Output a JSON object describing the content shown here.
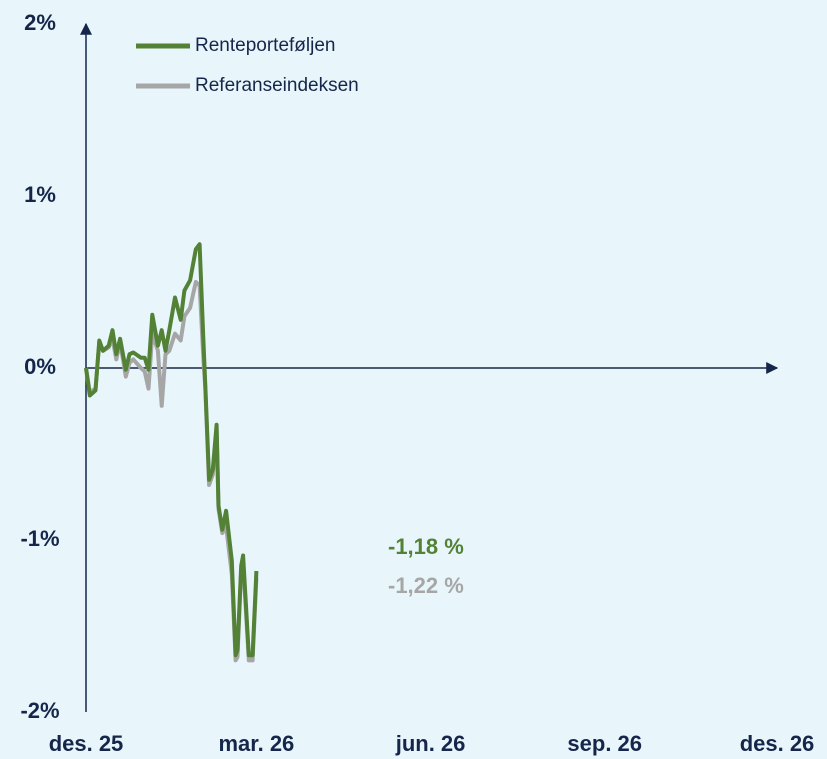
{
  "chart_data": {
    "type": "line",
    "x": [
      0,
      2,
      5,
      7,
      9,
      12,
      14,
      16,
      18,
      21,
      23,
      25,
      29,
      31,
      33,
      35,
      38,
      40,
      42,
      44,
      47,
      50,
      52,
      55,
      58,
      60,
      62,
      63,
      65,
      67,
      69,
      70,
      72,
      74,
      77,
      79,
      80,
      82,
      83,
      86,
      88,
      90
    ],
    "series": [
      {
        "name": "Renteporteføljen",
        "color": "#538135",
        "values": [
          0,
          -0.16,
          -0.13,
          0.16,
          0.1,
          0.13,
          0.22,
          0.08,
          0.17,
          -0.01,
          0.08,
          0.09,
          0.06,
          0.06,
          -0.01,
          0.31,
          0.13,
          0.22,
          0.1,
          0.22,
          0.41,
          0.28,
          0.45,
          0.51,
          0.69,
          0.72,
          0.16,
          -0.1,
          -0.65,
          -0.59,
          -0.33,
          -0.8,
          -0.94,
          -0.83,
          -1.12,
          -1.67,
          -1.64,
          -1.15,
          -1.09,
          -1.67,
          -1.67,
          -1.18
        ]
      },
      {
        "name": "Referanseindeksen",
        "color": "#a6a6a6",
        "values": [
          0,
          -0.14,
          -0.12,
          0.15,
          0.1,
          0.12,
          0.17,
          0.05,
          0.15,
          -0.05,
          0.03,
          0.05,
          0.0,
          -0.02,
          -0.12,
          0.2,
          0.1,
          -0.22,
          0.08,
          0.1,
          0.2,
          0.16,
          0.3,
          0.35,
          0.5,
          0.48,
          0.05,
          -0.12,
          -0.68,
          -0.62,
          -0.36,
          -0.82,
          -0.96,
          -0.92,
          -1.2,
          -1.7,
          -1.68,
          -1.17,
          -1.13,
          -1.7,
          -1.7,
          -1.22
        ]
      }
    ],
    "xlim": [
      0,
      365
    ],
    "xticks": [
      {
        "value": 0,
        "label": "des. 25"
      },
      {
        "value": 90,
        "label": "mar. 26"
      },
      {
        "value": 182,
        "label": "jun. 26"
      },
      {
        "value": 274,
        "label": "sep. 26"
      },
      {
        "value": 365,
        "label": "des. 26"
      }
    ],
    "ylim": [
      -2,
      2
    ],
    "yticks": [
      {
        "value": -2,
        "label": "-2%"
      },
      {
        "value": -1,
        "label": "-1%"
      },
      {
        "value": 0,
        "label": "0%"
      },
      {
        "value": 1,
        "label": "1%"
      },
      {
        "value": 2,
        "label": "2%"
      }
    ],
    "annotations": [
      {
        "text": "-1,18 %",
        "color": "#538135"
      },
      {
        "text": "-1,22 %",
        "color": "#a6a6a6"
      }
    ],
    "legend": "top-left"
  }
}
